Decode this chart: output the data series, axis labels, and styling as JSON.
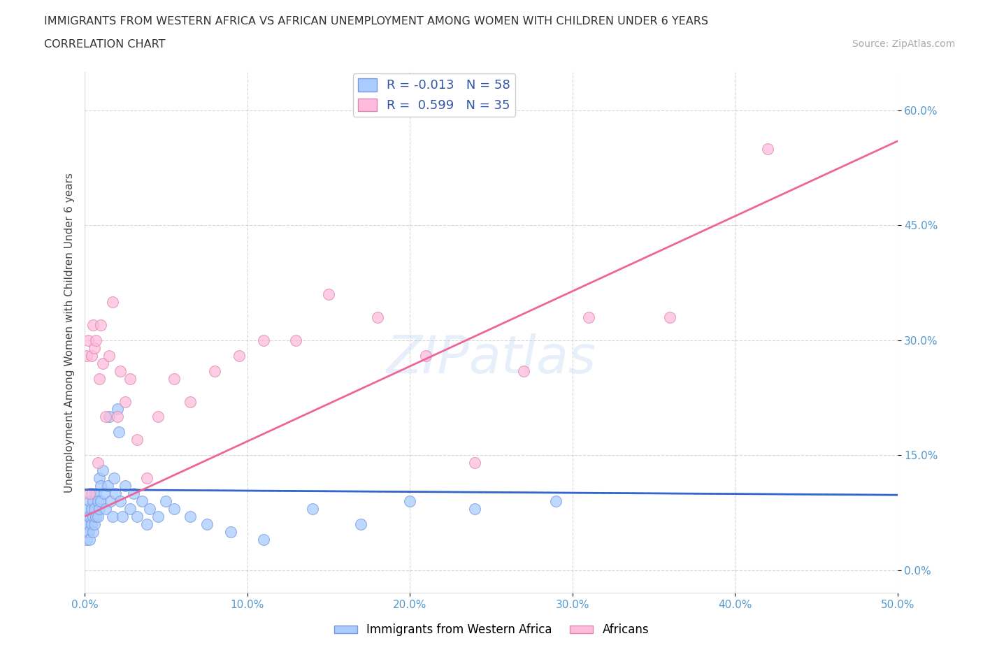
{
  "title_line1": "IMMIGRANTS FROM WESTERN AFRICA VS AFRICAN UNEMPLOYMENT AMONG WOMEN WITH CHILDREN UNDER 6 YEARS",
  "title_line2": "CORRELATION CHART",
  "source_text": "Source: ZipAtlas.com",
  "ylabel": "Unemployment Among Women with Children Under 6 years",
  "xlim": [
    0.0,
    0.5
  ],
  "ylim": [
    -0.03,
    0.65
  ],
  "xticks": [
    0.0,
    0.1,
    0.2,
    0.3,
    0.4,
    0.5
  ],
  "xtick_labels": [
    "0.0%",
    "10.0%",
    "20.0%",
    "30.0%",
    "40.0%",
    "50.0%"
  ],
  "yticks": [
    0.0,
    0.15,
    0.3,
    0.45,
    0.6
  ],
  "ytick_labels": [
    "0.0%",
    "15.0%",
    "30.0%",
    "45.0%",
    "60.0%"
  ],
  "grid_color": "#cccccc",
  "background_color": "#ffffff",
  "series1_color": "#aaccff",
  "series1_edge": "#7799dd",
  "series1_label": "Immigrants from Western Africa",
  "series1_R": -0.013,
  "series1_N": 58,
  "series1_line_color": "#3366cc",
  "series2_color": "#ffbbdd",
  "series2_edge": "#dd88aa",
  "series2_label": "Africans",
  "series2_R": 0.599,
  "series2_N": 35,
  "series2_line_color": "#ee6699",
  "blue_x": [
    0.0005,
    0.001,
    0.001,
    0.0015,
    0.002,
    0.002,
    0.0025,
    0.003,
    0.003,
    0.003,
    0.004,
    0.004,
    0.004,
    0.005,
    0.005,
    0.005,
    0.006,
    0.006,
    0.007,
    0.007,
    0.008,
    0.008,
    0.009,
    0.009,
    0.01,
    0.01,
    0.011,
    0.012,
    0.013,
    0.014,
    0.015,
    0.016,
    0.017,
    0.018,
    0.019,
    0.02,
    0.021,
    0.022,
    0.023,
    0.025,
    0.028,
    0.03,
    0.032,
    0.035,
    0.038,
    0.04,
    0.045,
    0.05,
    0.055,
    0.065,
    0.075,
    0.09,
    0.11,
    0.14,
    0.17,
    0.2,
    0.24,
    0.29
  ],
  "blue_y": [
    0.06,
    0.04,
    0.07,
    0.05,
    0.08,
    0.06,
    0.05,
    0.07,
    0.09,
    0.04,
    0.08,
    0.06,
    0.1,
    0.07,
    0.09,
    0.05,
    0.08,
    0.06,
    0.07,
    0.1,
    0.09,
    0.07,
    0.08,
    0.12,
    0.09,
    0.11,
    0.13,
    0.1,
    0.08,
    0.11,
    0.2,
    0.09,
    0.07,
    0.12,
    0.1,
    0.21,
    0.18,
    0.09,
    0.07,
    0.11,
    0.08,
    0.1,
    0.07,
    0.09,
    0.06,
    0.08,
    0.07,
    0.09,
    0.08,
    0.07,
    0.06,
    0.05,
    0.04,
    0.08,
    0.06,
    0.09,
    0.08,
    0.09
  ],
  "pink_x": [
    0.001,
    0.002,
    0.003,
    0.004,
    0.005,
    0.006,
    0.007,
    0.008,
    0.009,
    0.01,
    0.011,
    0.013,
    0.015,
    0.017,
    0.02,
    0.022,
    0.025,
    0.028,
    0.032,
    0.038,
    0.045,
    0.055,
    0.065,
    0.08,
    0.095,
    0.11,
    0.13,
    0.15,
    0.18,
    0.21,
    0.24,
    0.27,
    0.31,
    0.36,
    0.42
  ],
  "pink_y": [
    0.28,
    0.3,
    0.1,
    0.28,
    0.32,
    0.29,
    0.3,
    0.14,
    0.25,
    0.32,
    0.27,
    0.2,
    0.28,
    0.35,
    0.2,
    0.26,
    0.22,
    0.25,
    0.17,
    0.12,
    0.2,
    0.25,
    0.22,
    0.26,
    0.28,
    0.3,
    0.3,
    0.36,
    0.33,
    0.28,
    0.14,
    0.26,
    0.33,
    0.33,
    0.55
  ],
  "blue_trend_x": [
    0.0,
    0.5
  ],
  "blue_trend_y": [
    0.105,
    0.098
  ],
  "pink_trend_x": [
    0.0,
    0.5
  ],
  "pink_trend_y": [
    0.07,
    0.56
  ]
}
